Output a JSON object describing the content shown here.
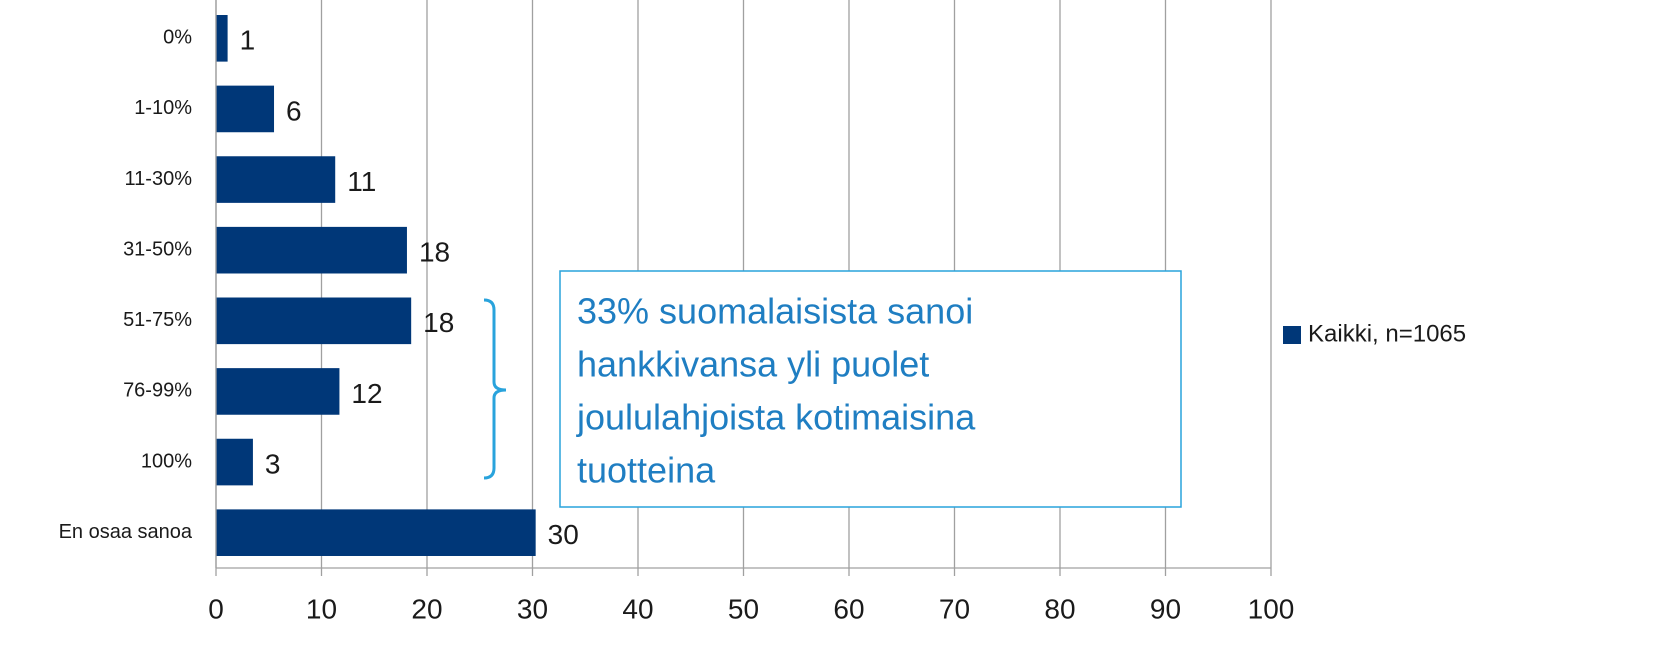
{
  "chart_data": {
    "type": "bar",
    "orientation": "horizontal",
    "categories": [
      "0%",
      "1-10%",
      "11-30%",
      "31-50%",
      "51-75%",
      "76-99%",
      "100%",
      "En osaa sanoa"
    ],
    "series": [
      {
        "name": "Kaikki, n=1065",
        "color": "#003778",
        "values": [
          1.1,
          5.5,
          11.3,
          18.1,
          18.5,
          11.7,
          3.5,
          30.3
        ],
        "value_labels": [
          "1",
          "6",
          "11",
          "18",
          "18",
          "12",
          "3",
          "30"
        ]
      }
    ],
    "xlim": [
      0,
      100
    ],
    "xticks": [
      0,
      10,
      20,
      30,
      40,
      50,
      60,
      70,
      80,
      90,
      100
    ],
    "grid": true,
    "legend": "right",
    "annotation": {
      "lines": [
        "33% suomalaisista sanoi",
        "hankkivansa yli puolet",
        "joululahjoista kotimaisina",
        "tuotteina"
      ]
    }
  }
}
